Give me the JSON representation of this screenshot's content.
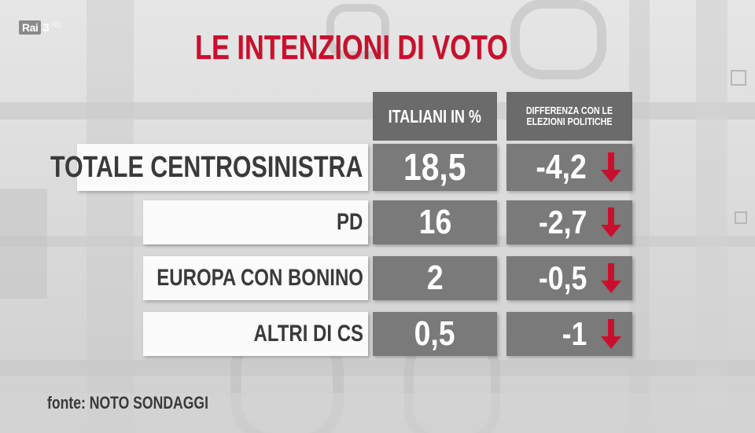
{
  "broadcaster": {
    "logo_text": "Rai",
    "channel": "3",
    "quality": "HD"
  },
  "colors": {
    "title_red": "#c8102e",
    "arrow_red": "#c8102e",
    "cell_gray": "#7a7a7a",
    "header_gray": "#6b6b6b"
  },
  "chart_data": {
    "type": "table",
    "title": "LE INTENZIONI DI VOTO",
    "columns": [
      "ITALIANI IN %",
      "DIFFERENZA CON LE ELEZIONI POLITICHE"
    ],
    "rows": [
      {
        "label": "TOTALE CENTROSINISTRA",
        "value": "18,5",
        "diff": "-4,2",
        "trend": "down-arrow-icon"
      },
      {
        "label": "PD",
        "value": "16",
        "diff": "-2,7",
        "trend": "down-arrow-icon"
      },
      {
        "label": "EUROPA CON BONINO",
        "value": "2",
        "diff": "-0,5",
        "trend": "down-arrow-icon"
      },
      {
        "label": "ALTRI DI CS",
        "value": "0,5",
        "diff": "-1",
        "trend": "down-arrow-icon"
      }
    ],
    "source": "fonte: NOTO SONDAGGI"
  }
}
